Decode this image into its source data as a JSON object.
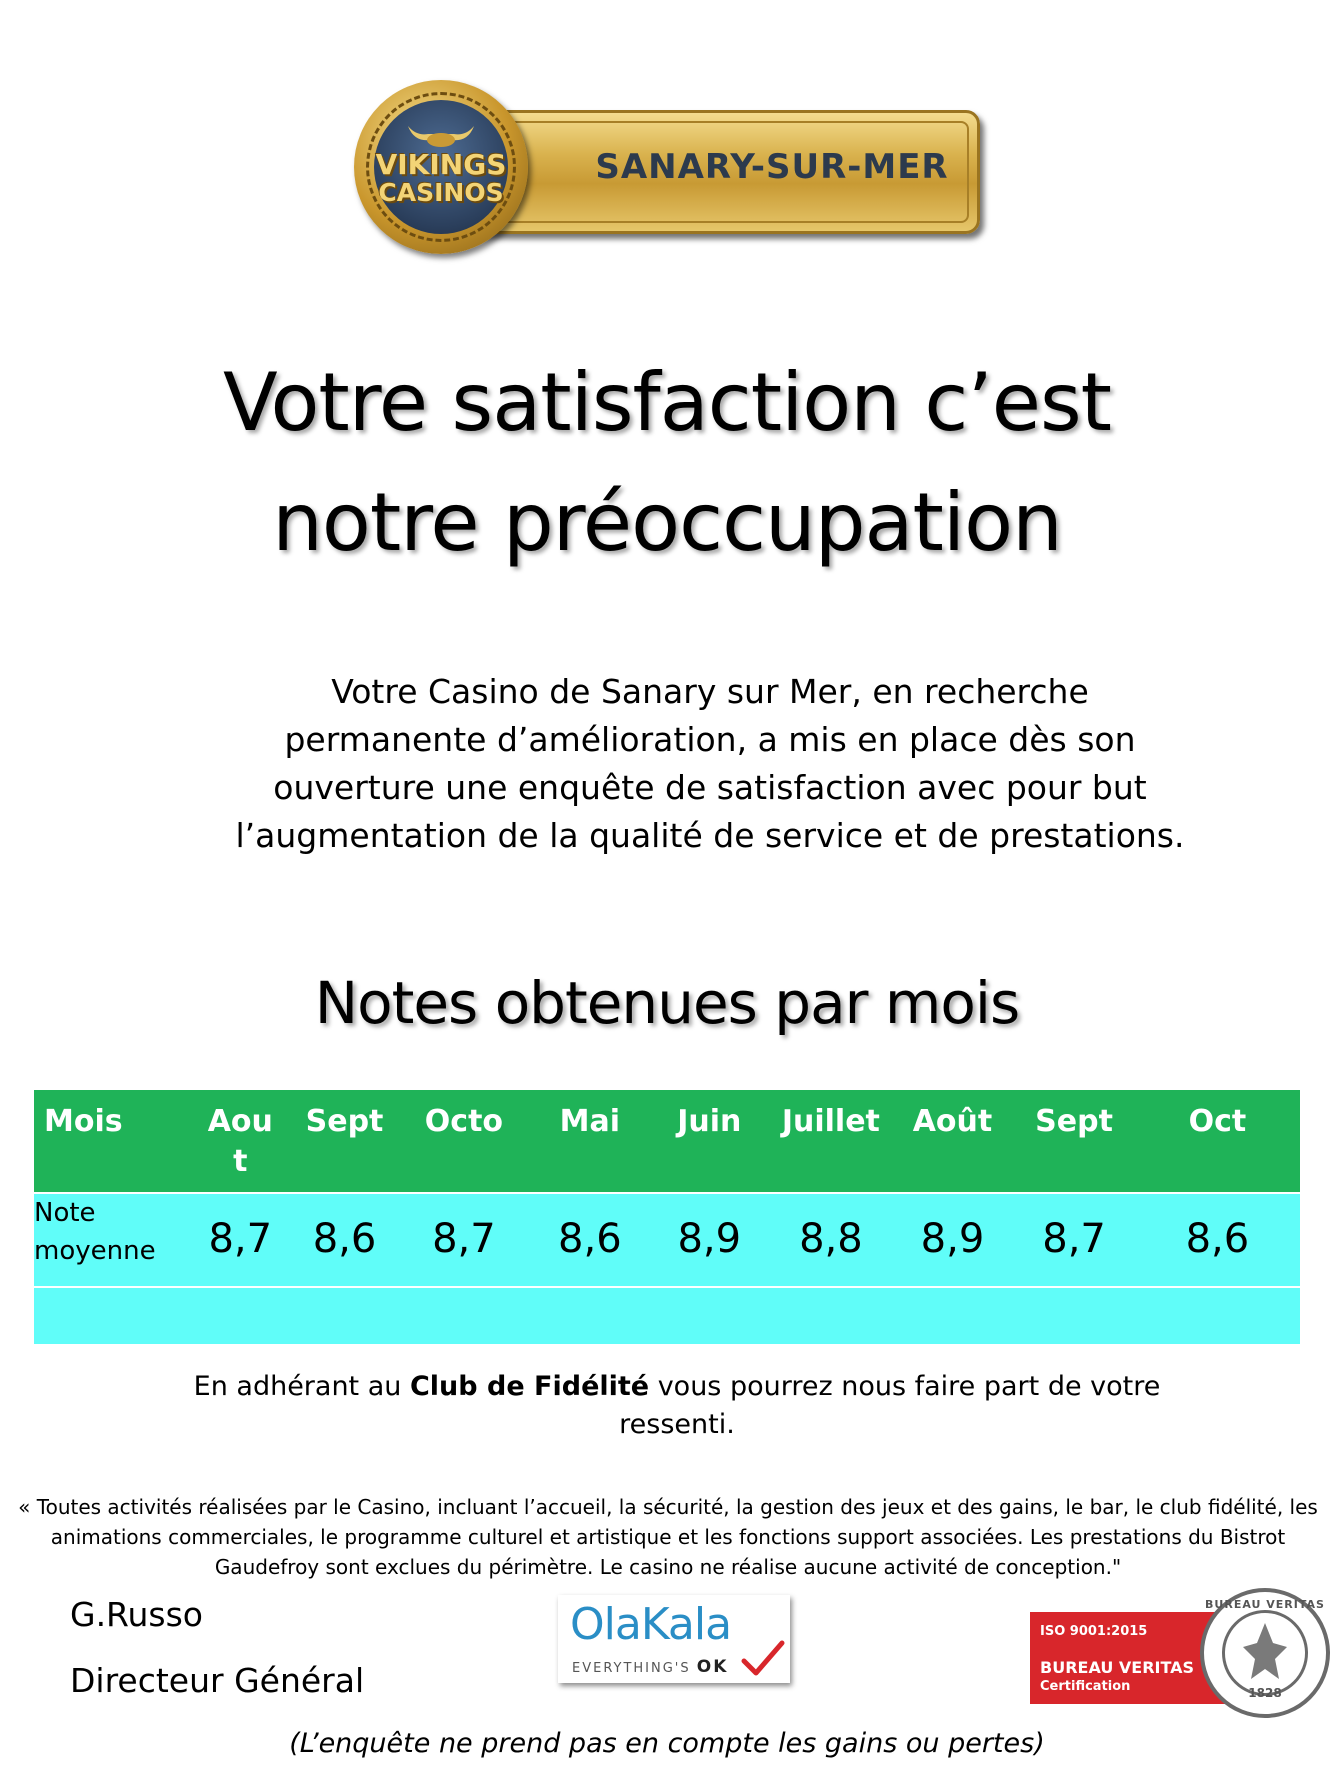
{
  "logo": {
    "brand_line1": "VIKINGS",
    "brand_line2": "CASINOS",
    "location": "SANARY-SUR-MER"
  },
  "title": {
    "line1": "Votre satisfaction c’est",
    "line2": "notre préoccupation"
  },
  "intro": {
    "lines": [
      "Votre Casino de Sanary sur Mer, en recherche",
      "permanente d’amélioration, a mis en place dès son",
      "ouverture une enquête de satisfaction avec pour but",
      "l’augmentation de la qualité de service et de prestations."
    ]
  },
  "subtitle": "Notes obtenues par mois",
  "table": {
    "header_label": "Mois",
    "row_label_line1": "Note",
    "row_label_line2": "moyenne",
    "columns": [
      {
        "month_line1": "Aou",
        "month_line2": "t",
        "score": "8,7"
      },
      {
        "month_line1": "Sept",
        "month_line2": "",
        "score": "8,6"
      },
      {
        "month_line1": "Octo",
        "month_line2": "",
        "score": "8,7"
      },
      {
        "month_line1": "Mai",
        "month_line2": "",
        "score": "8,6"
      },
      {
        "month_line1": "Juin",
        "month_line2": "",
        "score": "8,9"
      },
      {
        "month_line1": "Juillet",
        "month_line2": "",
        "score": "8,8"
      },
      {
        "month_line1": "Août",
        "month_line2": "",
        "score": "8,9"
      },
      {
        "month_line1": "Sept",
        "month_line2": "",
        "score": "8,7"
      },
      {
        "month_line1": "Oct",
        "month_line2": "",
        "score": "8,6"
      }
    ],
    "colors": {
      "header": "#1fb358",
      "rows": "#60fdf9"
    }
  },
  "club": {
    "before": "En adhérant au ",
    "bold": "Club de Fidélité",
    "after": " vous pourrez nous faire part de votre",
    "line2": "ressenti."
  },
  "scope": {
    "lines": [
      "« Toutes activités réalisées par le Casino, incluant l’accueil, la sécurité, la gestion des jeux et des gains, le bar, le club fidélité, les",
      "animations commerciales, le programme culturel et artistique et les fonctions support associées. Les prestations du Bistrot",
      "Gaudefroy sont exclues du périmètre. Le casino ne réalise aucune activité de conception.\""
    ]
  },
  "signer": {
    "name": "G.Russo",
    "role": "Directeur Général"
  },
  "olakala": {
    "name": "OlaKala",
    "tagline": "EVERYTHING'S",
    "ok": "OK"
  },
  "bureau_veritas": {
    "iso": "ISO 9001:2015",
    "name": "BUREAU VERITAS",
    "cert": "Certification",
    "seal_top": "BUREAU VERITAS",
    "seal_year": "1828"
  },
  "footnote": "(L’enquête ne prend pas en compte les gains ou pertes)"
}
